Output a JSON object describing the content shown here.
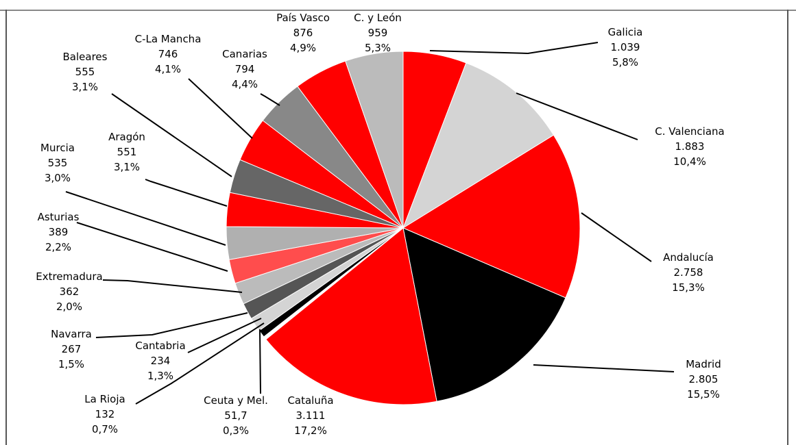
{
  "chart_data": {
    "type": "pie",
    "start_angle_deg": 0,
    "direction": "clockwise",
    "slices": [
      {
        "label": "Galicia",
        "value": "1.039",
        "percent": "5,8%",
        "pct": 5.8,
        "color": "#ff0000"
      },
      {
        "label": "C. Valenciana",
        "value": "1.883",
        "percent": "10,4%",
        "pct": 10.4,
        "color": "#d4d4d4"
      },
      {
        "label": "Andalucía",
        "value": "2.758",
        "percent": "15,3%",
        "pct": 15.3,
        "color": "#ff0000"
      },
      {
        "label": "Madrid",
        "value": "2.805",
        "percent": "15,5%",
        "pct": 15.5,
        "color": "#000000"
      },
      {
        "label": "Cataluña",
        "value": "3.111",
        "percent": "17,2%",
        "pct": 17.2,
        "color": "#ff0000"
      },
      {
        "label": "Ceuta y Mel.",
        "value": "51,7",
        "percent": "0,3%",
        "pct": 0.3,
        "color": "#ffffff"
      },
      {
        "label": "La Rioja",
        "value": "132",
        "percent": "0,7%",
        "pct": 0.7,
        "color": "#000000"
      },
      {
        "label": "Cantabria",
        "value": "234",
        "percent": "1,3%",
        "pct": 1.3,
        "color": "#d4d4d4"
      },
      {
        "label": "Navarra",
        "value": "267",
        "percent": "1,5%",
        "pct": 1.5,
        "color": "#555555"
      },
      {
        "label": "Extremadura",
        "value": "362",
        "percent": "2,0%",
        "pct": 2.0,
        "color": "#bbbbbb"
      },
      {
        "label": "Asturias",
        "value": "389",
        "percent": "2,2%",
        "pct": 2.2,
        "color": "#ff4d4d"
      },
      {
        "label": "Murcia",
        "value": "535",
        "percent": "3,0%",
        "pct": 3.0,
        "color": "#b0b0b0"
      },
      {
        "label": "Aragón",
        "value": "551",
        "percent": "3,1%",
        "pct": 3.1,
        "color": "#ff0000"
      },
      {
        "label": "Baleares",
        "value": "555",
        "percent": "3,1%",
        "pct": 3.1,
        "color": "#666666"
      },
      {
        "label": "C-La Mancha",
        "value": "746",
        "percent": "4,1%",
        "pct": 4.1,
        "color": "#ff0000"
      },
      {
        "label": "Canarias",
        "value": "794",
        "percent": "4,4%",
        "pct": 4.4,
        "color": "#888888"
      },
      {
        "label": "País Vasco",
        "value": "876",
        "percent": "4,9%",
        "pct": 4.9,
        "color": "#ff0000"
      },
      {
        "label": "C. y León",
        "value": "959",
        "percent": "5,3%",
        "pct": 5.3,
        "color": "#bbbbbb"
      }
    ]
  }
}
